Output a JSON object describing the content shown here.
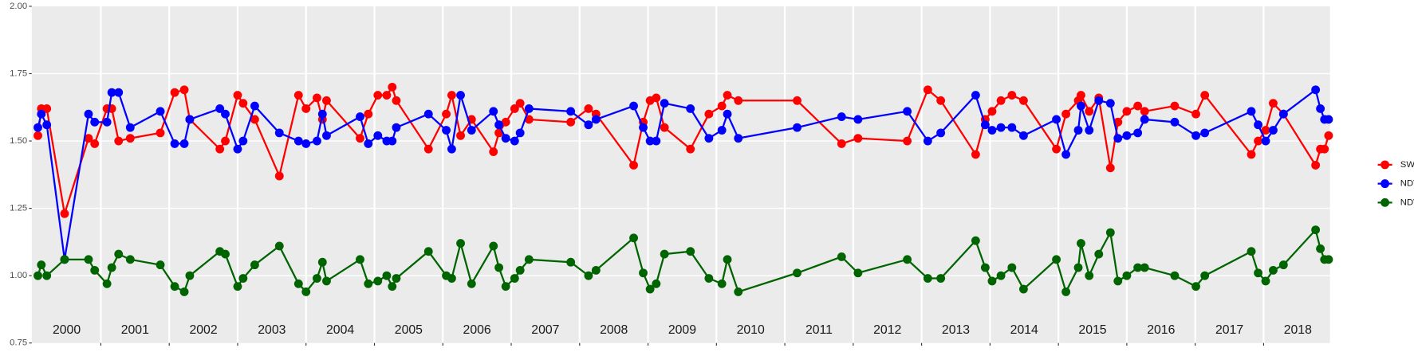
{
  "chart_data": {
    "type": "line",
    "x": [
      2000.08,
      2000.13,
      2000.21,
      2000.47,
      2000.82,
      2000.91,
      2001.09,
      2001.16,
      2001.26,
      2001.43,
      2001.87,
      2002.08,
      2002.22,
      2002.3,
      2002.74,
      2002.82,
      2003.0,
      2003.08,
      2003.25,
      2003.61,
      2003.89,
      2004.0,
      2004.16,
      2004.24,
      2004.3,
      2004.79,
      2004.91,
      2005.05,
      2005.18,
      2005.26,
      2005.32,
      2005.79,
      2006.05,
      2006.13,
      2006.26,
      2006.42,
      2006.74,
      2006.82,
      2006.92,
      2007.05,
      2007.13,
      2007.26,
      2007.87,
      2008.13,
      2008.24,
      2008.79,
      2008.93,
      2009.03,
      2009.12,
      2009.24,
      2009.62,
      2009.89,
      2010.08,
      2010.16,
      2010.32,
      2011.18,
      2011.83,
      2012.07,
      2012.79,
      2013.09,
      2013.28,
      2013.79,
      2013.93,
      2014.03,
      2014.16,
      2014.32,
      2014.49,
      2014.97,
      2015.11,
      2015.29,
      2015.33,
      2015.45,
      2015.59,
      2015.76,
      2015.87,
      2016.0,
      2016.16,
      2016.26,
      2016.7,
      2017.01,
      2017.14,
      2017.82,
      2017.92,
      2018.03,
      2018.14,
      2018.29,
      2018.76,
      2018.83,
      2018.89,
      2018.95
    ],
    "series": [
      {
        "name": "SWIR",
        "color": "#ff0000",
        "values": [
          1.52,
          1.62,
          1.62,
          1.23,
          1.51,
          1.49,
          1.62,
          1.62,
          1.5,
          1.51,
          1.53,
          1.68,
          1.69,
          1.58,
          1.47,
          1.5,
          1.67,
          1.64,
          1.58,
          1.37,
          1.67,
          1.62,
          1.66,
          1.58,
          1.65,
          1.51,
          1.6,
          1.67,
          1.67,
          1.7,
          1.65,
          1.47,
          1.6,
          1.67,
          1.52,
          1.58,
          1.46,
          1.53,
          1.57,
          1.62,
          1.64,
          1.58,
          1.57,
          1.62,
          1.6,
          1.41,
          1.57,
          1.65,
          1.66,
          1.55,
          1.47,
          1.6,
          1.63,
          1.67,
          1.65,
          1.65,
          1.49,
          1.51,
          1.5,
          1.69,
          1.65,
          1.45,
          1.58,
          1.61,
          1.65,
          1.67,
          1.65,
          1.47,
          1.6,
          1.65,
          1.67,
          1.61,
          1.66,
          1.4,
          1.57,
          1.61,
          1.63,
          1.61,
          1.63,
          1.6,
          1.67,
          1.45,
          1.5,
          1.54,
          1.64,
          1.6,
          1.41,
          1.47,
          1.47,
          1.52
        ]
      },
      {
        "name": "NDVI",
        "color": "#0000ff",
        "values": [
          1.55,
          1.6,
          1.56,
          1.06,
          1.6,
          1.57,
          1.57,
          1.68,
          1.68,
          1.55,
          1.61,
          1.49,
          1.49,
          1.58,
          1.62,
          1.6,
          1.47,
          1.5,
          1.63,
          1.53,
          1.5,
          1.49,
          1.5,
          1.6,
          1.52,
          1.59,
          1.49,
          1.52,
          1.5,
          1.5,
          1.55,
          1.6,
          1.54,
          1.47,
          1.67,
          1.54,
          1.61,
          1.56,
          1.51,
          1.5,
          1.53,
          1.62,
          1.61,
          1.56,
          1.58,
          1.63,
          1.55,
          1.5,
          1.5,
          1.64,
          1.62,
          1.51,
          1.54,
          1.6,
          1.51,
          1.55,
          1.59,
          1.58,
          1.61,
          1.5,
          1.53,
          1.67,
          1.56,
          1.54,
          1.55,
          1.55,
          1.52,
          1.58,
          1.45,
          1.54,
          1.63,
          1.54,
          1.65,
          1.64,
          1.51,
          1.52,
          1.53,
          1.58,
          1.57,
          1.52,
          1.53,
          1.61,
          1.56,
          1.5,
          1.54,
          1.6,
          1.69,
          1.62,
          1.58,
          1.58
        ]
      },
      {
        "name": "NDWI",
        "color": "#006400",
        "values": [
          1.0,
          1.04,
          1.0,
          1.06,
          1.06,
          1.02,
          0.97,
          1.03,
          1.08,
          1.06,
          1.04,
          0.96,
          0.94,
          1.0,
          1.09,
          1.08,
          0.96,
          0.99,
          1.04,
          1.11,
          0.97,
          0.94,
          0.99,
          1.05,
          0.98,
          1.06,
          0.97,
          0.98,
          1.0,
          0.96,
          0.99,
          1.09,
          1.0,
          0.99,
          1.12,
          0.97,
          1.11,
          1.03,
          0.96,
          0.99,
          1.02,
          1.06,
          1.05,
          1.0,
          1.02,
          1.14,
          1.01,
          0.95,
          0.97,
          1.08,
          1.09,
          0.99,
          0.97,
          1.06,
          0.94,
          1.01,
          1.07,
          1.01,
          1.06,
          0.99,
          0.99,
          1.13,
          1.03,
          0.98,
          1.0,
          1.03,
          0.95,
          1.06,
          0.94,
          1.03,
          1.12,
          1.0,
          1.08,
          1.16,
          0.98,
          1.0,
          1.03,
          1.03,
          1.0,
          0.96,
          1.0,
          1.09,
          1.01,
          0.98,
          1.02,
          1.04,
          1.17,
          1.1,
          1.06,
          1.06
        ]
      }
    ],
    "xlim": [
      1999.99,
      2018.97
    ],
    "xticks": [
      {
        "value": 2000.5,
        "label": "2000"
      },
      {
        "value": 2001.5,
        "label": "2001"
      },
      {
        "value": 2002.5,
        "label": "2002"
      },
      {
        "value": 2003.5,
        "label": "2003"
      },
      {
        "value": 2004.5,
        "label": "2004"
      },
      {
        "value": 2005.5,
        "label": "2005"
      },
      {
        "value": 2006.5,
        "label": "2006"
      },
      {
        "value": 2007.5,
        "label": "2007"
      },
      {
        "value": 2008.5,
        "label": "2008"
      },
      {
        "value": 2009.5,
        "label": "2009"
      },
      {
        "value": 2010.5,
        "label": "2010"
      },
      {
        "value": 2011.5,
        "label": "2011"
      },
      {
        "value": 2012.5,
        "label": "2012"
      },
      {
        "value": 2013.5,
        "label": "2013"
      },
      {
        "value": 2014.5,
        "label": "2014"
      },
      {
        "value": 2015.5,
        "label": "2015"
      },
      {
        "value": 2016.5,
        "label": "2016"
      },
      {
        "value": 2017.5,
        "label": "2017"
      },
      {
        "value": 2018.5,
        "label": "2018"
      }
    ],
    "x_grid": [
      2001,
      2002,
      2003,
      2004,
      2005,
      2006,
      2007,
      2008,
      2009,
      2010,
      2011,
      2012,
      2013,
      2014,
      2015,
      2016,
      2017,
      2018
    ],
    "ylim": [
      0.75,
      2.0
    ],
    "yticks": [
      {
        "value": 0.75,
        "label": "0.75"
      },
      {
        "value": 1.0,
        "label": "1.00"
      },
      {
        "value": 1.25,
        "label": "1.25"
      },
      {
        "value": 1.5,
        "label": "1.50"
      },
      {
        "value": 1.75,
        "label": "1.75"
      },
      {
        "value": 2.0,
        "label": "2.00"
      }
    ],
    "grid": true,
    "legend": "right"
  }
}
